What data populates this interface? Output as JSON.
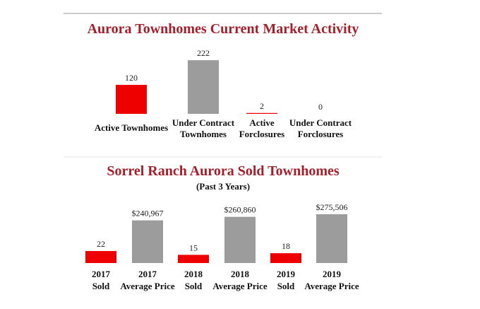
{
  "colors": {
    "title": "#a31f2a",
    "red": "#ee0000",
    "gray": "#9c9c9c",
    "rule": "#cfcfcf"
  },
  "chart_data": [
    {
      "type": "bar",
      "title": "Aurora Townhomes Current Market Activity",
      "categories": [
        [
          "Active Townhomes"
        ],
        [
          "Under Contract",
          "Townhomes"
        ],
        [
          "Active",
          "Forclosures"
        ],
        [
          "Under Contract",
          "Forclosures"
        ]
      ],
      "values": [
        120,
        222,
        2,
        0
      ],
      "value_labels": [
        "120",
        "222",
        "2",
        "0"
      ],
      "bar_colors": [
        "red",
        "gray",
        "red",
        "gray"
      ],
      "ylim": [
        0,
        240
      ]
    },
    {
      "type": "bar",
      "title": "Sorrel Ranch Aurora Sold Townhomes",
      "subtitle": "(Past 3 Years)",
      "categories": [
        [
          "2017",
          "Sold"
        ],
        [
          "2017",
          "Average Price"
        ],
        [
          "2018",
          "Sold"
        ],
        [
          "2018",
          "Average Price"
        ],
        [
          "2019",
          "Sold"
        ],
        [
          "2019",
          "Average Price"
        ]
      ],
      "values": [
        22,
        240967,
        15,
        260860,
        18,
        275506
      ],
      "value_labels": [
        "22",
        "$240,967",
        "15",
        "$260,860",
        "18",
        "$275,506"
      ],
      "bar_colors": [
        "red",
        "gray",
        "red",
        "gray",
        "red",
        "gray"
      ]
    }
  ]
}
